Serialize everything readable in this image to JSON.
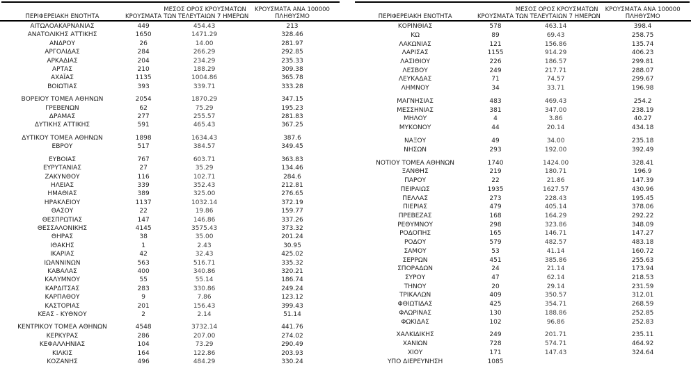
{
  "chart_data": {
    "type": "table",
    "columns": [
      {
        "id": "region",
        "label": "ΠΕΡΙΦΕΡΕΙΑΚΗ ΕΝΟΤΗΤΑ",
        "header_lines": [
          "ΠΕΡΙΦΕΡΕΙΑΚΗ ΕΝΟΤΗΤΑ"
        ]
      },
      {
        "id": "cases",
        "label": "ΚΡΟΥΣΜΑΤΑ",
        "header_lines": [
          "ΚΡΟΥΣΜΑΤΑ"
        ]
      },
      {
        "id": "avg7",
        "label": "ΜΕΣΟΣ ΟΡΟΣ ΚΡΟΥΣΜΑΤΩΝ ΤΩΝ ΤΕΛΕΥΤΑΙΩΝ 7 ΗΜΕΡΩΝ",
        "header_lines": [
          "ΜΕΣΟΣ ΟΡΟΣ ΚΡΟΥΣΜΑΤΩΝ",
          "ΤΩΝ ΤΕΛΕΥΤΑΙΩΝ 7 ΗΜΕΡΩΝ"
        ]
      },
      {
        "id": "per100k",
        "label": "ΚΡΟΥΣΜΑΤΑ ΑΝΑ 100000 ΠΛΗΘΥΣΜΟ",
        "header_lines": [
          "ΚΡΟΥΣΜΑΤΑ ΑΝΑ 100000",
          "ΠΛΗΘΥΣΜΟ"
        ]
      }
    ],
    "left_rows": [
      [
        "ΑΙΤΩΛΟΑΚΑΡΝΑΝΙΑΣ",
        "449",
        "454.43",
        "213"
      ],
      [
        "ΑΝΑΤΟΛΙΚΗΣ ΑΤΤΙΚΗΣ",
        "1650",
        "1471.29",
        "328.46"
      ],
      [
        "ΑΝΔΡΟΥ",
        "26",
        "14.00",
        "281.97"
      ],
      [
        "ΑΡΓΟΛΙΔΑΣ",
        "284",
        "266.29",
        "292.85"
      ],
      [
        "ΑΡΚΑΔΙΑΣ",
        "204",
        "234.29",
        "235.33"
      ],
      [
        "ΑΡΤΑΣ",
        "210",
        "188.29",
        "309.38"
      ],
      [
        "ΑΧΑΪΑΣ",
        "1135",
        "1004.86",
        "365.78"
      ],
      [
        "ΒΟΙΩΤΙΑΣ",
        "393",
        "339.71",
        "333.28"
      ],
      null,
      [
        "ΒΟΡΕΙΟΥ ΤΟΜΕΑ ΑΘΗΝΩΝ",
        "2054",
        "1870.29",
        "347.15"
      ],
      [
        "ΓΡΕΒΕΝΩΝ",
        "62",
        "75.29",
        "195.23"
      ],
      [
        "ΔΡΑΜΑΣ",
        "277",
        "255.57",
        "281.83"
      ],
      [
        "ΔΥΤΙΚΗΣ ΑΤΤΙΚΗΣ",
        "591",
        "465.43",
        "367.25"
      ],
      null,
      [
        "ΔΥΤΙΚΟΥ ΤΟΜΕΑ ΑΘΗΝΩΝ",
        "1898",
        "1634.43",
        "387.6"
      ],
      [
        "ΕΒΡΟΥ",
        "517",
        "384.57",
        "349.45"
      ],
      null,
      [
        "ΕΥΒΟΙΑΣ",
        "767",
        "603.71",
        "363.83"
      ],
      [
        "ΕΥΡΥΤΑΝΙΑΣ",
        "27",
        "35.29",
        "134.46"
      ],
      [
        "ΖΑΚΥΝΘΟΥ",
        "116",
        "102.71",
        "284.6"
      ],
      [
        "ΗΛΕΙΑΣ",
        "339",
        "352.43",
        "212.81"
      ],
      [
        "ΗΜΑΘΙΑΣ",
        "389",
        "325.00",
        "276.65"
      ],
      [
        "ΗΡΑΚΛΕΙΟΥ",
        "1137",
        "1032.14",
        "372.19"
      ],
      [
        "ΘΑΣΟΥ",
        "22",
        "19.86",
        "159.77"
      ],
      [
        "ΘΕΣΠΡΩΤΙΑΣ",
        "147",
        "146.86",
        "337.26"
      ],
      [
        "ΘΕΣΣΑΛΟΝΙΚΗΣ",
        "4145",
        "3575.43",
        "373.32"
      ],
      [
        "ΘΗΡΑΣ",
        "38",
        "35.00",
        "201.24"
      ],
      [
        "ΙΘΑΚΗΣ",
        "1",
        "2.43",
        "30.95"
      ],
      [
        "ΙΚΑΡΙΑΣ",
        "42",
        "32.43",
        "425.02"
      ],
      [
        "ΙΩΑΝΝΙΝΩΝ",
        "563",
        "516.71",
        "335.32"
      ],
      [
        "ΚΑΒΑΛΑΣ",
        "400",
        "340.86",
        "320.21"
      ],
      [
        "ΚΑΛΥΜΝΟΥ",
        "55",
        "55.14",
        "186.74"
      ],
      [
        "ΚΑΡΔΙΤΣΑΣ",
        "283",
        "330.86",
        "249.24"
      ],
      [
        "ΚΑΡΠΑΘΟΥ",
        "9",
        "7.86",
        "123.12"
      ],
      [
        "ΚΑΣΤΟΡΙΑΣ",
        "201",
        "156.43",
        "399.43"
      ],
      [
        "ΚΕΑΣ - ΚΥΘΝΟΥ",
        "2",
        "2.14",
        "51.14"
      ],
      null,
      [
        "ΚΕΝΤΡΙΚΟΥ ΤΟΜΕΑ ΑΘΗΝΩΝ",
        "4548",
        "3732.14",
        "441.76"
      ],
      [
        "ΚΕΡΚΥΡΑΣ",
        "286",
        "207.00",
        "274.02"
      ],
      [
        "ΚΕΦΑΛΛΗΝΙΑΣ",
        "104",
        "73.29",
        "290.49"
      ],
      [
        "ΚΙΛΚΙΣ",
        "164",
        "122.86",
        "203.93"
      ],
      [
        "ΚΟΖΑΝΗΣ",
        "496",
        "484.29",
        "330.24"
      ]
    ],
    "right_rows": [
      [
        "ΚΟΡΙΝΘΙΑΣ",
        "578",
        "463.14",
        "398.4"
      ],
      [
        "ΚΩ",
        "89",
        "69.43",
        "258.75"
      ],
      [
        "ΛΑΚΩΝΙΑΣ",
        "121",
        "156.86",
        "135.74"
      ],
      [
        "ΛΑΡΙΣΑΣ",
        "1155",
        "914.29",
        "406.23"
      ],
      [
        "ΛΑΣΙΘΙΟΥ",
        "226",
        "186.57",
        "299.81"
      ],
      [
        "ΛΕΣΒΟΥ",
        "249",
        "217.71",
        "288.07"
      ],
      [
        "ΛΕΥΚΑΔΑΣ",
        "71",
        "74.57",
        "299.67"
      ],
      [
        "ΛΗΜΝΟΥ",
        "34",
        "33.71",
        "196.98"
      ],
      null,
      [
        "ΜΑΓΝΗΣΙΑΣ",
        "483",
        "469.43",
        "254.2"
      ],
      [
        "ΜΕΣΣΗΝΙΑΣ",
        "381",
        "347.00",
        "238.19"
      ],
      [
        "ΜΗΛΟΥ",
        "4",
        "3.86",
        "40.27"
      ],
      [
        "ΜΥΚΟΝΟΥ",
        "44",
        "20.14",
        "434.18"
      ],
      null,
      [
        "ΝΑΞΟΥ",
        "49",
        "34.00",
        "235.18"
      ],
      [
        "ΝΗΣΩΝ",
        "293",
        "192.00",
        "392.49"
      ],
      null,
      [
        "ΝΟΤΙΟΥ ΤΟΜΕΑ ΑΘΗΝΩΝ",
        "1740",
        "1424.00",
        "328.41"
      ],
      [
        "ΞΑΝΘΗΣ",
        "219",
        "180.71",
        "196.9"
      ],
      [
        "ΠΑΡΟΥ",
        "22",
        "21.86",
        "147.39"
      ],
      [
        "ΠΕΙΡΑΙΩΣ",
        "1935",
        "1627.57",
        "430.96"
      ],
      [
        "ΠΕΛΛΑΣ",
        "273",
        "228.43",
        "195.45"
      ],
      [
        "ΠΙΕΡΙΑΣ",
        "479",
        "405.14",
        "378.06"
      ],
      [
        "ΠΡΕΒΕΖΑΣ",
        "168",
        "164.29",
        "292.22"
      ],
      [
        "ΡΕΘΥΜΝΟΥ",
        "298",
        "323.86",
        "348.09"
      ],
      [
        "ΡΟΔΟΠΗΣ",
        "165",
        "146.71",
        "147.27"
      ],
      [
        "ΡΟΔΟΥ",
        "579",
        "482.57",
        "483.18"
      ],
      [
        "ΣΑΜΟΥ",
        "53",
        "41.14",
        "160.72"
      ],
      [
        "ΣΕΡΡΩΝ",
        "451",
        "385.86",
        "255.63"
      ],
      [
        "ΣΠΟΡΑΔΩΝ",
        "24",
        "21.14",
        "173.94"
      ],
      [
        "ΣΥΡΟΥ",
        "47",
        "62.14",
        "218.53"
      ],
      [
        "ΤΗΝΟΥ",
        "20",
        "29.14",
        "231.59"
      ],
      [
        "ΤΡΙΚΑΛΩΝ",
        "409",
        "350.57",
        "312.01"
      ],
      [
        "ΦΘΙΩΤΙΔΑΣ",
        "425",
        "354.71",
        "268.59"
      ],
      [
        "ΦΛΩΡΙΝΑΣ",
        "130",
        "188.86",
        "252.85"
      ],
      [
        "ΦΩΚΙΔΑΣ",
        "102",
        "96.86",
        "252.83"
      ],
      null,
      [
        "ΧΑΛΚΙΔΙΚΗΣ",
        "249",
        "201.71",
        "235.11"
      ],
      [
        "ΧΑΝΙΩΝ",
        "728",
        "574.71",
        "464.92"
      ],
      [
        "ΧΙΟΥ",
        "171",
        "147.43",
        "324.64"
      ],
      [
        "ΥΠΟ ΔΙΕΡΕΥΝΗΣΗ",
        "1085",
        "",
        ""
      ]
    ]
  }
}
